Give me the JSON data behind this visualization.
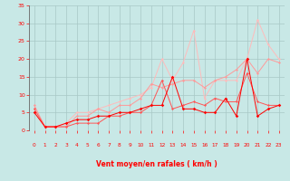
{
  "x": [
    0,
    1,
    2,
    3,
    4,
    5,
    6,
    7,
    8,
    9,
    10,
    11,
    12,
    13,
    14,
    15,
    16,
    17,
    18,
    19,
    20,
    21,
    22,
    23
  ],
  "series": [
    {
      "color": "#ff0000",
      "linewidth": 0.7,
      "markersize": 1.8,
      "y": [
        5,
        1,
        1,
        2,
        3,
        3,
        4,
        4,
        5,
        5,
        6,
        7,
        7,
        15,
        6,
        6,
        5,
        5,
        9,
        4,
        20,
        4,
        6,
        7
      ]
    },
    {
      "color": "#ff5555",
      "linewidth": 0.7,
      "markersize": 1.5,
      "y": [
        6,
        1,
        1,
        1,
        2,
        2,
        2,
        4,
        4,
        5,
        5,
        7,
        14,
        6,
        7,
        8,
        7,
        9,
        8,
        8,
        16,
        8,
        7,
        7
      ]
    },
    {
      "color": "#ff9999",
      "linewidth": 0.7,
      "markersize": 1.5,
      "y": [
        7,
        1,
        1,
        1,
        4,
        4,
        6,
        5,
        7,
        7,
        9,
        13,
        12,
        13,
        14,
        14,
        12,
        14,
        15,
        17,
        20,
        16,
        20,
        19
      ]
    },
    {
      "color": "#ffbbbb",
      "linewidth": 0.7,
      "markersize": 1.5,
      "y": [
        6,
        1,
        1,
        2,
        5,
        5,
        6,
        7,
        8,
        9,
        10,
        12,
        20,
        14,
        19,
        28,
        9,
        14,
        14,
        14,
        20,
        31,
        24,
        20
      ]
    }
  ],
  "xlabel": "Vent moyen/en rafales ( km/h )",
  "xlim": [
    -0.5,
    23.5
  ],
  "ylim": [
    0,
    35
  ],
  "yticks": [
    0,
    5,
    10,
    15,
    20,
    25,
    30,
    35
  ],
  "xticks": [
    0,
    1,
    2,
    3,
    4,
    5,
    6,
    7,
    8,
    9,
    10,
    11,
    12,
    13,
    14,
    15,
    16,
    17,
    18,
    19,
    20,
    21,
    22,
    23
  ],
  "bg_color": "#c8e8e6",
  "grid_color": "#a8c8c6",
  "tick_color": "#ff0000",
  "label_color": "#ff0000",
  "figsize": [
    3.2,
    2.0
  ],
  "dpi": 100
}
